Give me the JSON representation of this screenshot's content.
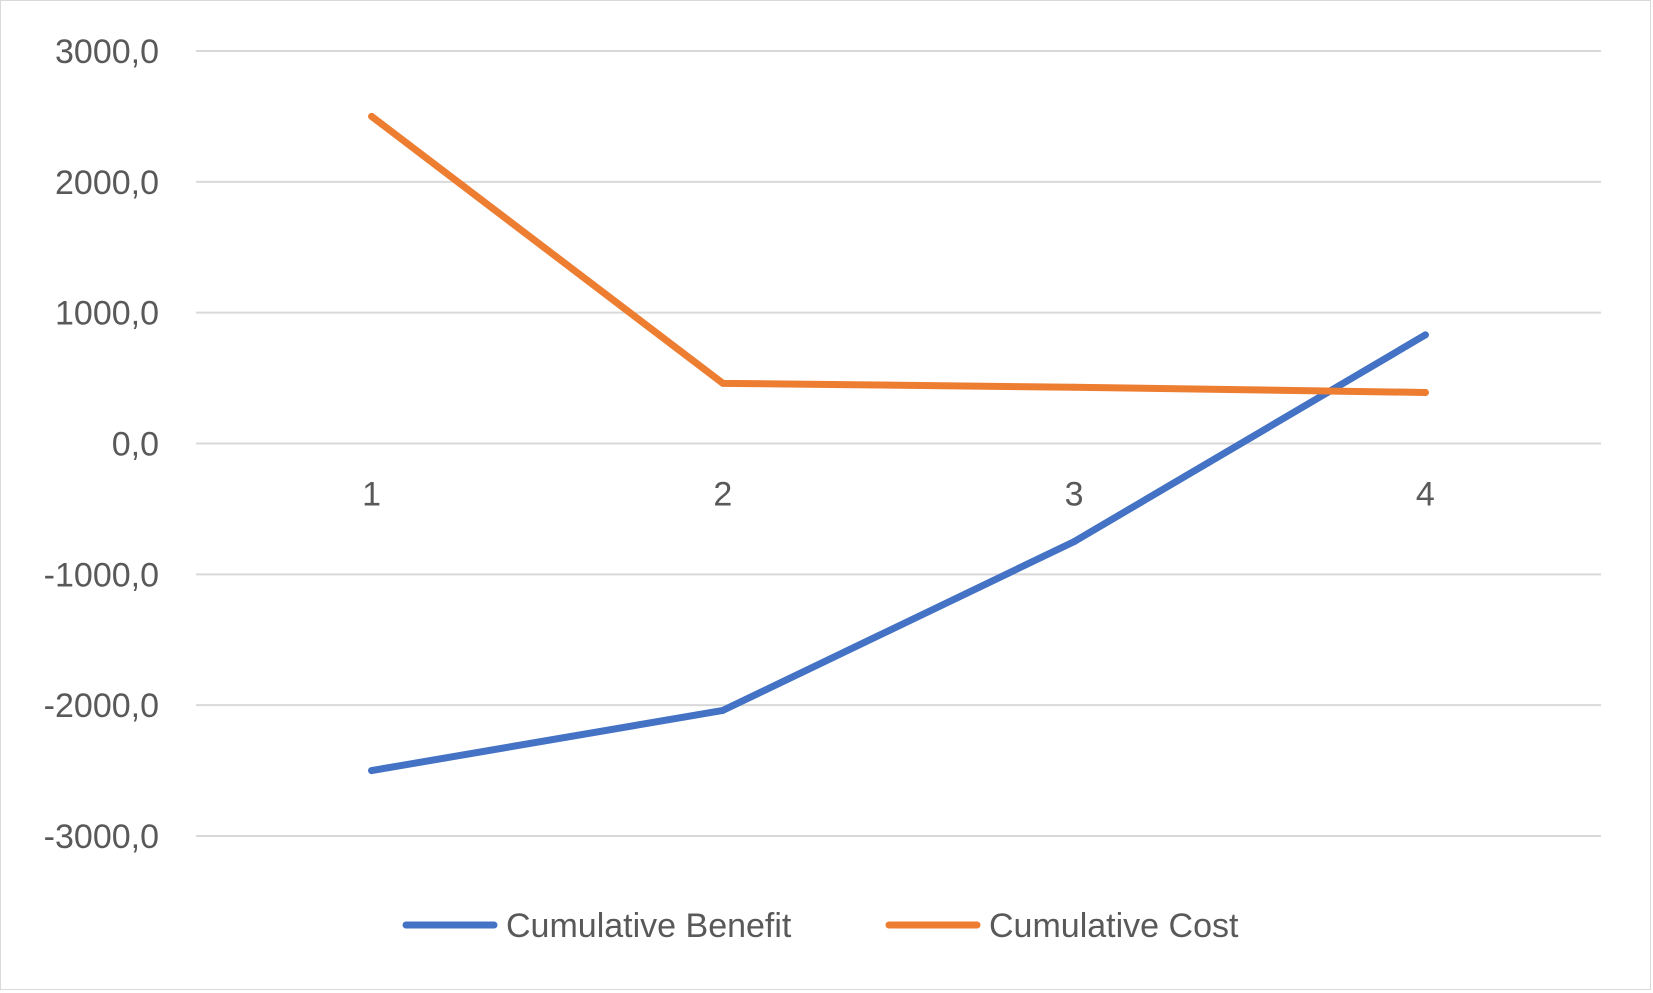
{
  "chart_data": {
    "type": "line",
    "title": "",
    "xlabel": "",
    "ylabel": "",
    "categories": [
      "1",
      "2",
      "3",
      "4"
    ],
    "ylim": [
      -3000,
      3000
    ],
    "y_ticks": [
      3000,
      2000,
      1000,
      0,
      -1000,
      -2000,
      -3000
    ],
    "y_tick_labels": [
      "3000,0",
      "2000,0",
      "1000,0",
      "0,0",
      "-1000,0",
      "-2000,0",
      "-3000,0"
    ],
    "grid": true,
    "legend_position": "bottom",
    "series": [
      {
        "name": "Cumulative Benefit",
        "color": "#4472C4",
        "values": [
          -2500,
          -2040,
          -750,
          830
        ]
      },
      {
        "name": "Cumulative Cost",
        "color": "#ED7D31",
        "values": [
          2500,
          460,
          430,
          390
        ]
      }
    ]
  }
}
